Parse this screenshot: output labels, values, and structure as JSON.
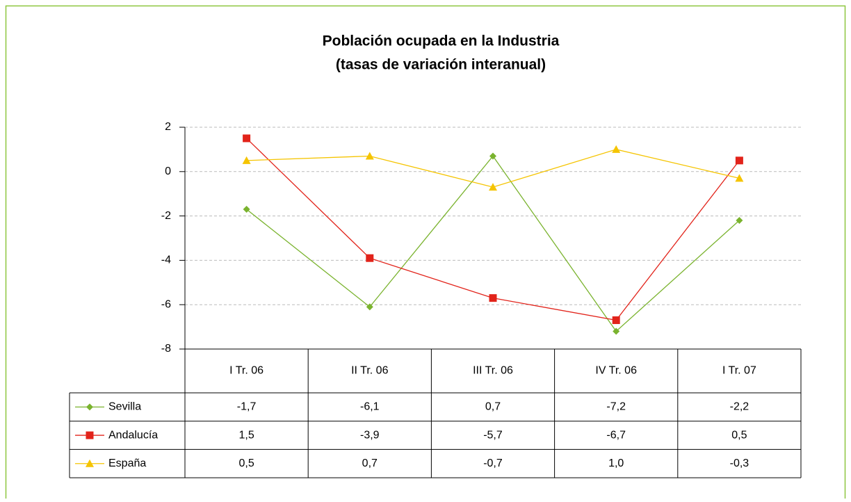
{
  "chart_data": {
    "type": "line",
    "title": "Población ocupada en la Industria",
    "subtitle": "(tasas de variación interanual)",
    "categories": [
      "I Tr. 06",
      "II Tr. 06",
      "III Tr. 06",
      "IV Tr. 06",
      "I Tr. 07"
    ],
    "series": [
      {
        "name": "Sevilla",
        "color": "#7ab32e",
        "marker": "diamond",
        "values": [
          -1.7,
          -6.1,
          0.7,
          -7.2,
          -2.2
        ],
        "value_labels": [
          "-1,7",
          "-6,1",
          "0,7",
          "-7,2",
          "-2,2"
        ]
      },
      {
        "name": "Andalucía",
        "color": "#e2231a",
        "marker": "square",
        "values": [
          1.5,
          -3.9,
          -5.7,
          -6.7,
          0.5
        ],
        "value_labels": [
          "1,5",
          "-3,9",
          "-5,7",
          "-6,7",
          "0,5"
        ]
      },
      {
        "name": "España",
        "color": "#f5c400",
        "marker": "triangle",
        "values": [
          0.5,
          0.7,
          -0.7,
          1.0,
          -0.3
        ],
        "value_labels": [
          "0,5",
          "0,7",
          "-0,7",
          "1,0",
          "-0,3"
        ]
      }
    ],
    "ylim": [
      -8,
      2
    ],
    "yticks": [
      2,
      0,
      -2,
      -4,
      -6,
      -8
    ],
    "grid": true
  }
}
